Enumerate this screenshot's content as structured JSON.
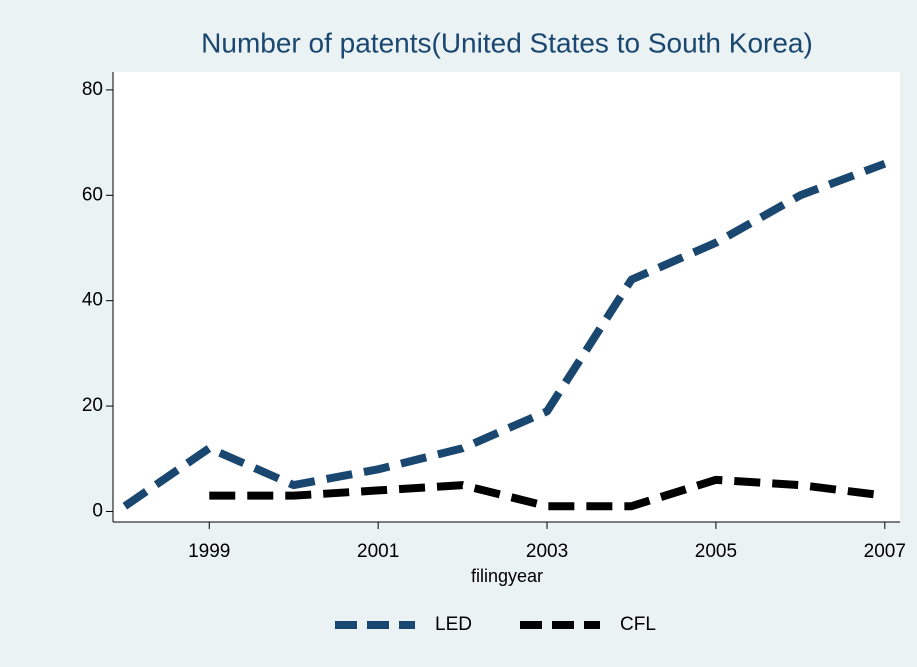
{
  "chart_data": {
    "type": "line",
    "title": "Number of patents(United States to South Korea)",
    "x_label": "filingyear",
    "x": [
      1998,
      1999,
      2000,
      2001,
      2002,
      2003,
      2004,
      2005,
      2006,
      2007
    ],
    "series": [
      {
        "name": "LED",
        "color": "#1a476f",
        "values": [
          1,
          12,
          5,
          8,
          12,
          19,
          44,
          51,
          60,
          66
        ]
      },
      {
        "name": "CFL",
        "color": "#000000",
        "values": [
          null,
          3,
          3,
          4,
          5,
          1,
          1,
          6,
          5,
          3
        ]
      }
    ],
    "xlim": [
      1997.86,
      2007.18
    ],
    "xticks": [
      1999,
      2001,
      2003,
      2005,
      2007
    ],
    "ylim": [
      -2,
      83.4
    ],
    "yticks": [
      0,
      20,
      40,
      60,
      80
    ],
    "legend": "bottom"
  }
}
